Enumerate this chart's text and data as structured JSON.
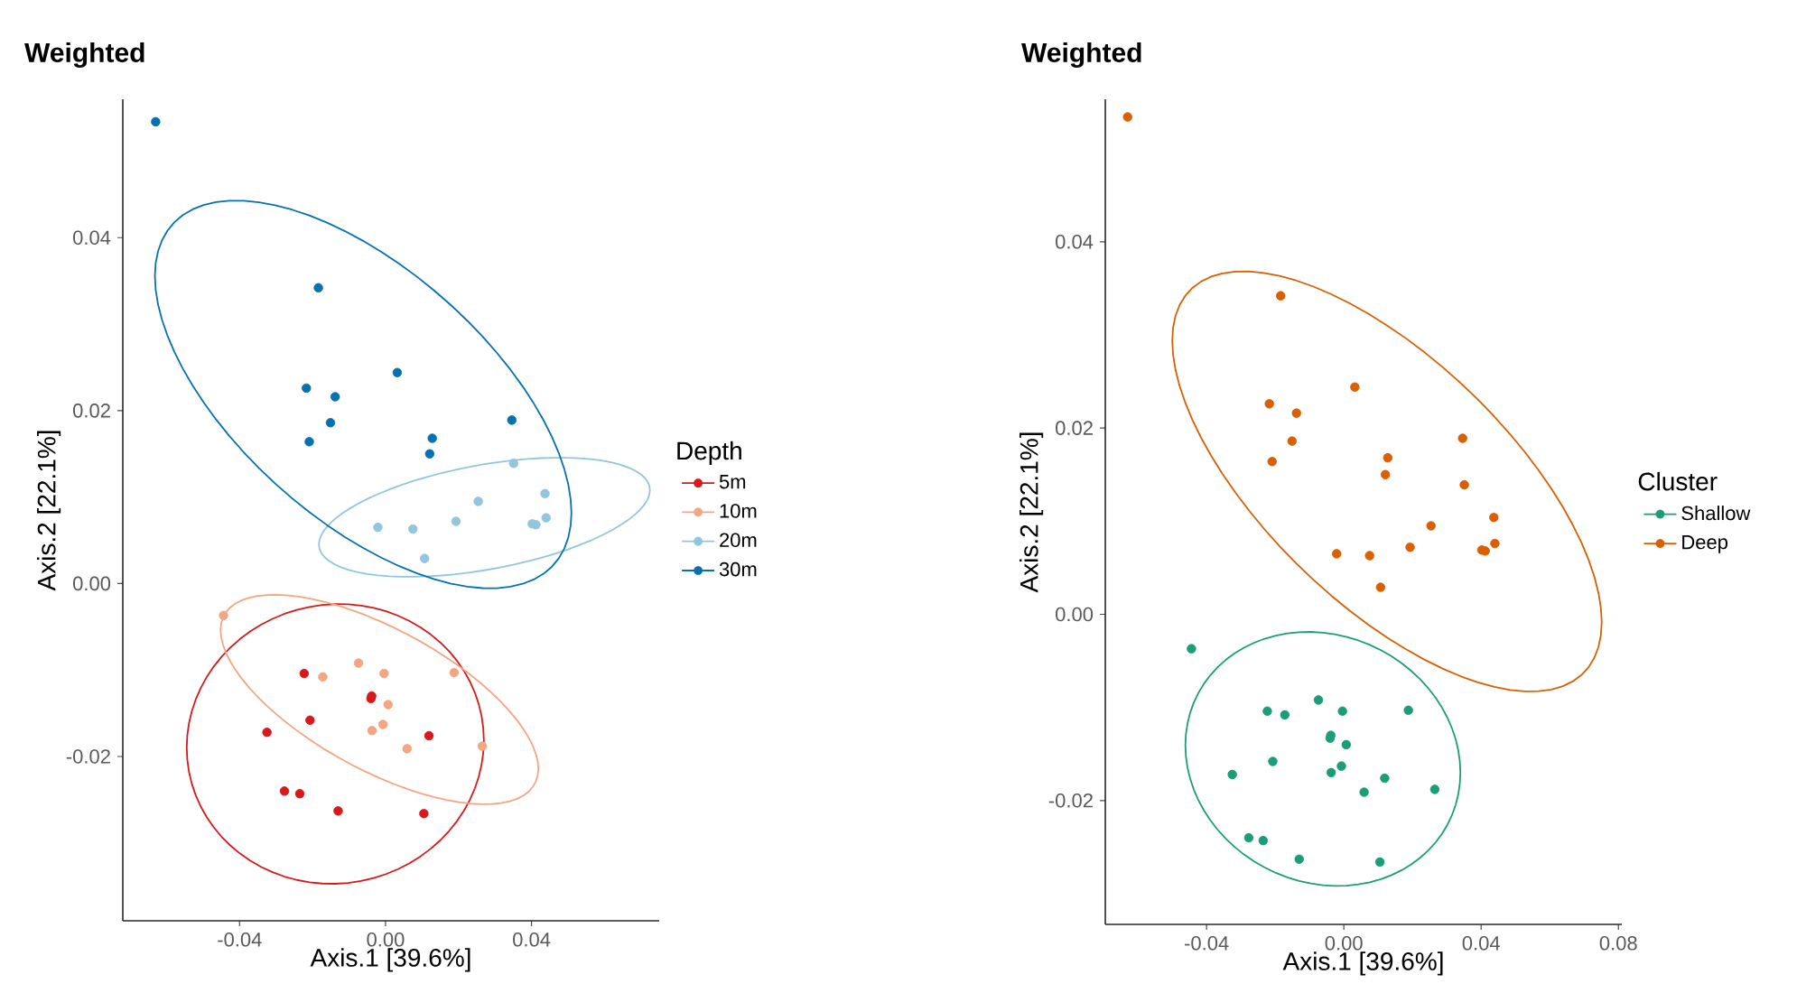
{
  "chart_data": [
    {
      "type": "scatter",
      "title": "Weighted",
      "xlabel": "Axis.1 [39.6%]",
      "ylabel": "Axis.2 [22.1%]",
      "legend_title": "Depth",
      "legend": "right",
      "xlim": [
        -0.072,
        0.075
      ],
      "ylim": [
        -0.039,
        0.056
      ],
      "xticks": [
        -0.04,
        {
          "value": 0,
          "label": "0.00"
        },
        0.04
      ],
      "yticks": [
        -0.02,
        {
          "value": 0,
          "label": "0.00"
        },
        0.02,
        0.04
      ],
      "series": [
        {
          "name": "5m",
          "color": "#d7191c",
          "x": [
            -0.0223,
            -0.0038,
            -0.004,
            -0.0207,
            -0.0325,
            0.0119,
            -0.0277,
            -0.0235,
            -0.013,
            0.0105
          ],
          "values": [
            -0.0104,
            -0.013,
            -0.0133,
            -0.0158,
            -0.0172,
            -0.0176,
            -0.024,
            -0.0243,
            -0.0263,
            -0.0266
          ]
        },
        {
          "name": "10m",
          "color": "#f4a582",
          "x": [
            -0.0444,
            -0.0172,
            -0.0074,
            -0.0004,
            0.0188,
            0.0007,
            -0.0037,
            -0.0007,
            0.0059,
            0.0265
          ],
          "values": [
            -0.0037,
            -0.0108,
            -0.0092,
            -0.0104,
            -0.0103,
            -0.014,
            -0.017,
            -0.0163,
            -0.0191,
            -0.0188
          ]
        },
        {
          "name": "20m",
          "color": "#92c5de",
          "x": [
            0.0351,
            0.0437,
            0.044,
            0.0402,
            0.0412,
            0.0254,
            0.0193,
            0.0075,
            -0.0021,
            0.0107
          ],
          "values": [
            0.0139,
            0.0104,
            0.0076,
            0.0069,
            0.0068,
            0.0095,
            0.0072,
            0.0063,
            0.0065,
            0.0029
          ]
        },
        {
          "name": "30m",
          "color": "#0571b0",
          "x": [
            -0.063,
            -0.0184,
            0.0032,
            -0.0217,
            -0.0138,
            -0.0151,
            -0.0209,
            0.0128,
            0.0121,
            0.0346
          ],
          "values": [
            0.0534,
            0.0342,
            0.0244,
            0.0226,
            0.0216,
            0.0186,
            0.0164,
            0.0168,
            0.015,
            0.0189
          ]
        }
      ]
    },
    {
      "type": "scatter",
      "title": "Weighted",
      "xlabel": "Axis.1 [39.6%]",
      "ylabel": "Axis.2 [22.1%]",
      "legend_title": "Cluster",
      "legend": "right",
      "xlim": [
        -0.0695,
        0.081
      ],
      "ylim": [
        -0.0333,
        0.0553
      ],
      "xticks": [
        -0.04,
        {
          "value": 0,
          "label": "0.00"
        },
        0.04,
        0.08
      ],
      "yticks": [
        -0.02,
        {
          "value": 0,
          "label": "0.00"
        },
        0.02,
        0.04
      ],
      "series": [
        {
          "name": "Shallow",
          "color": "#1b9e77",
          "x": [
            -0.0444,
            -0.0172,
            -0.0074,
            -0.0004,
            0.0188,
            0.0007,
            -0.0037,
            -0.0007,
            0.0059,
            0.0265,
            -0.0223,
            -0.0038,
            -0.004,
            -0.0207,
            -0.0325,
            0.0119,
            -0.0277,
            -0.0235,
            -0.013,
            0.0105
          ],
          "values": [
            -0.0037,
            -0.0108,
            -0.0092,
            -0.0104,
            -0.0103,
            -0.014,
            -0.017,
            -0.0163,
            -0.0191,
            -0.0188,
            -0.0104,
            -0.013,
            -0.0133,
            -0.0158,
            -0.0172,
            -0.0176,
            -0.024,
            -0.0243,
            -0.0263,
            -0.0266
          ]
        },
        {
          "name": "Deep",
          "color": "#d95f02",
          "x": [
            -0.063,
            -0.0184,
            0.0032,
            -0.0217,
            -0.0138,
            -0.0151,
            -0.0209,
            0.0128,
            0.0121,
            0.0346,
            0.0351,
            0.0437,
            0.044,
            0.0402,
            0.0412,
            0.0254,
            0.0193,
            0.0075,
            -0.0021,
            0.0107
          ],
          "values": [
            0.0534,
            0.0342,
            0.0244,
            0.0226,
            0.0216,
            0.0186,
            0.0164,
            0.0168,
            0.015,
            0.0189,
            0.0139,
            0.0104,
            0.0076,
            0.0069,
            0.0068,
            0.0095,
            0.0072,
            0.0063,
            0.0065,
            0.0029
          ]
        }
      ]
    }
  ]
}
